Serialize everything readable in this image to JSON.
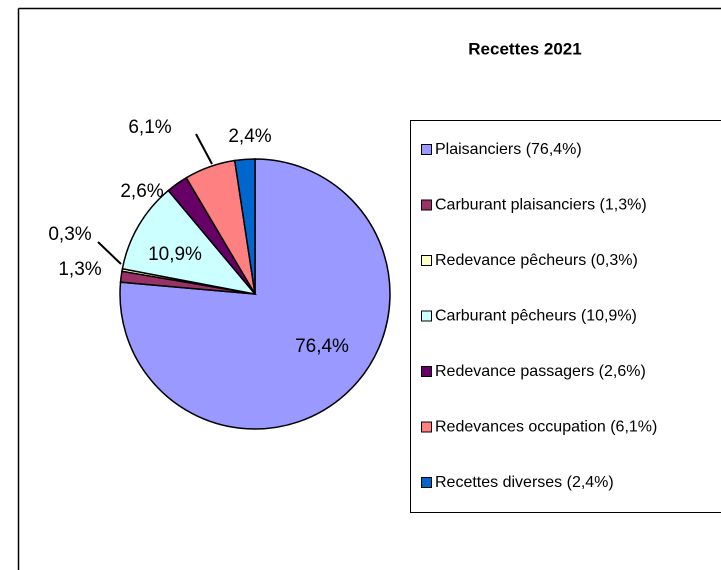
{
  "chart_data": {
    "type": "pie",
    "title": "Recettes 2021",
    "categories": [
      "Plaisanciers (76,4%)",
      "Carburant plaisanciers (1,3%)",
      "Redevance pêcheurs (0,3%)",
      "Carburant pêcheurs (10,9%)",
      "Redevance passagers (2,6%)",
      "Redevances occupation (6,1%)",
      "Recettes diverses (2,4%)"
    ],
    "values": [
      76.4,
      1.3,
      0.3,
      10.9,
      2.6,
      6.1,
      2.4
    ],
    "value_labels": [
      "76,4%",
      "1,3%",
      "0,3%",
      "10,9%",
      "2,6%",
      "6,1%",
      "2,4%"
    ],
    "colors": [
      "#9999ff",
      "#993366",
      "#ffffcc",
      "#ccffff",
      "#660066",
      "#ff8080",
      "#0066cc"
    ]
  }
}
